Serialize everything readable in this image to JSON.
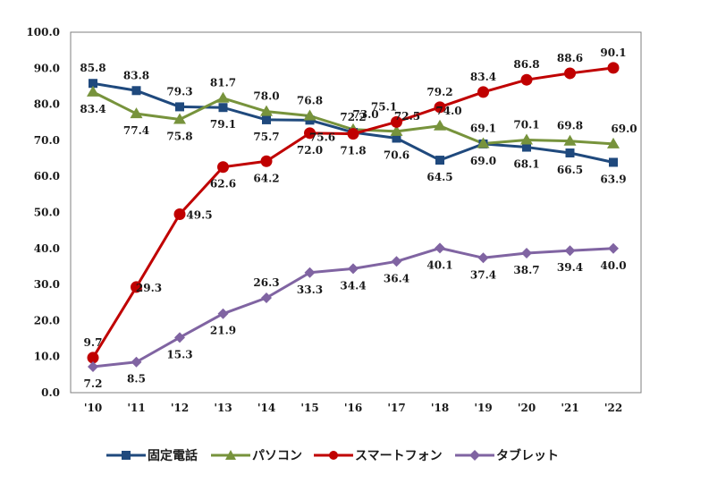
{
  "chart_data": {
    "type": "line",
    "title": "",
    "xlabel": "",
    "ylabel": "",
    "categories": [
      "'10",
      "'11",
      "'12",
      "'13",
      "'14",
      "'15",
      "'16",
      "'17",
      "'18",
      "'19",
      "'20",
      "'21",
      "'22"
    ],
    "ylim": [
      0,
      100
    ],
    "yticks": [
      "0.0",
      "10.0",
      "20.0",
      "30.0",
      "40.0",
      "50.0",
      "60.0",
      "70.0",
      "80.0",
      "90.0",
      "100.0"
    ],
    "grid": false,
    "legend_position": "bottom",
    "series": [
      {
        "name": "固定電話",
        "color": "#1f497d",
        "marker": "square",
        "values": [
          85.8,
          83.8,
          79.3,
          79.1,
          75.7,
          75.6,
          72.2,
          70.6,
          64.5,
          69.0,
          68.1,
          66.5,
          63.9
        ],
        "labels": [
          "85.8",
          "83.8",
          "79.3",
          "79.1",
          "75.7",
          "75.6",
          "72.2",
          "70.6",
          "64.5",
          "69.0",
          "68.1",
          "66.5",
          "63.9"
        ]
      },
      {
        "name": "パソコン",
        "color": "#77933c",
        "marker": "triangle",
        "values": [
          83.4,
          77.4,
          75.8,
          81.7,
          78.0,
          76.8,
          73.0,
          72.5,
          74.0,
          69.1,
          70.1,
          69.8,
          69.0
        ],
        "labels": [
          "83.4",
          "77.4",
          "75.8",
          "81.7",
          "78.0",
          "76.8",
          "73.0",
          "72.5",
          "74.0",
          "69.1",
          "70.1",
          "69.8",
          "69.0"
        ]
      },
      {
        "name": "スマートフォン",
        "color": "#c00000",
        "marker": "circle",
        "values": [
          9.7,
          29.3,
          49.5,
          62.6,
          64.2,
          72.0,
          71.8,
          75.1,
          79.2,
          83.4,
          86.8,
          88.6,
          90.1
        ],
        "labels": [
          "9.7",
          "29.3",
          "49.5",
          "62.6",
          "64.2",
          "72.0",
          "71.8",
          "75.1",
          "79.2",
          "83.4",
          "86.8",
          "88.6",
          "90.1"
        ]
      },
      {
        "name": "タブレット",
        "color": "#8064a2",
        "marker": "diamond",
        "values": [
          7.2,
          8.5,
          15.3,
          21.9,
          26.3,
          33.3,
          34.4,
          36.4,
          40.1,
          37.4,
          38.7,
          39.4,
          40.0
        ],
        "labels": [
          "7.2",
          "8.5",
          "15.3",
          "21.9",
          "26.3",
          "33.3",
          "34.4",
          "36.4",
          "40.1",
          "37.4",
          "38.7",
          "39.4",
          "40.0"
        ]
      }
    ]
  }
}
